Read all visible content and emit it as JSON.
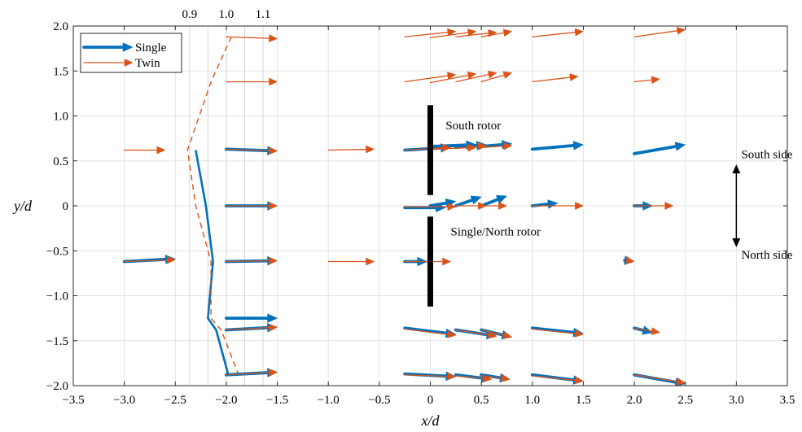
{
  "chart_data": {
    "type": "quiver",
    "xlabel": "x/d",
    "ylabel": "y/d",
    "xlim": [
      -3.5,
      3.5
    ],
    "ylim": [
      -2.0,
      2.0
    ],
    "x_ticks": [
      -3.5,
      -3.0,
      -2.5,
      -2.0,
      -1.5,
      -1.0,
      -0.5,
      0,
      0.5,
      1.0,
      1.5,
      2.0,
      2.5,
      3.0,
      3.5
    ],
    "x_tick_labels": [
      "−3.5",
      "−3.0",
      "−2.5",
      "−2.0",
      "−1.5",
      "−1.0",
      "−0.5",
      "0",
      "0.5",
      "1.0",
      "1.5",
      "2.0",
      "2.5",
      "3.0",
      "3.5"
    ],
    "y_ticks": [
      -2.0,
      -1.5,
      -1.0,
      -0.5,
      0,
      0.5,
      1.0,
      1.5,
      2.0
    ],
    "y_tick_labels": [
      "−2.0",
      "−1.5",
      "−1.0",
      "−0.5",
      "0",
      "0.5",
      "1.0",
      "1.5",
      "2.0"
    ],
    "grid": true,
    "legend_position": "top-left",
    "colors": {
      "single": "#0072BD",
      "twin": "#D95319"
    },
    "top_axis": {
      "ticks": [
        -2.36,
        -2.18,
        -2.0,
        -1.82,
        -1.64
      ],
      "labels": [
        {
          "x": -2.36,
          "text": "0.9"
        },
        {
          "x": -2.0,
          "text": "1.0"
        },
        {
          "x": -1.64,
          "text": "1.1"
        }
      ]
    },
    "series": [
      {
        "name": "Single",
        "vectors": [
          {
            "x": -3.0,
            "y": -0.62,
            "u": 0.5,
            "v": 0.03
          },
          {
            "x": -2.0,
            "y": 0.63,
            "u": 0.5,
            "v": -0.02
          },
          {
            "x": -2.0,
            "y": 0.0,
            "u": 0.5,
            "v": 0.0
          },
          {
            "x": -2.0,
            "y": -0.62,
            "u": 0.5,
            "v": 0.01
          },
          {
            "x": -2.0,
            "y": -1.25,
            "u": 0.5,
            "v": 0.0
          },
          {
            "x": -2.0,
            "y": -1.38,
            "u": 0.5,
            "v": 0.03
          },
          {
            "x": -2.0,
            "y": -1.88,
            "u": 0.5,
            "v": 0.03
          },
          {
            "x": -0.25,
            "y": -0.62,
            "u": 0.22,
            "v": 0.0
          },
          {
            "x": -0.25,
            "y": 0.62,
            "u": 0.45,
            "v": 0.03
          },
          {
            "x": 0.0,
            "y": 0.66,
            "u": 0.45,
            "v": 0.02
          },
          {
            "x": 0.25,
            "y": 0.65,
            "u": 0.3,
            "v": 0.03
          },
          {
            "x": 0.5,
            "y": 0.66,
            "u": 0.3,
            "v": 0.03
          },
          {
            "x": 1.0,
            "y": 0.63,
            "u": 0.5,
            "v": 0.05
          },
          {
            "x": 2.0,
            "y": 0.58,
            "u": 0.5,
            "v": 0.1
          },
          {
            "x": -0.25,
            "y": -0.02,
            "u": 0.4,
            "v": 0.0
          },
          {
            "x": 0.0,
            "y": 0.0,
            "u": 0.25,
            "v": 0.05
          },
          {
            "x": 0.25,
            "y": 0.0,
            "u": 0.25,
            "v": 0.1
          },
          {
            "x": 0.5,
            "y": 0.0,
            "u": 0.25,
            "v": 0.11
          },
          {
            "x": 1.0,
            "y": 0.0,
            "u": 0.25,
            "v": 0.03
          },
          {
            "x": 2.0,
            "y": 0.0,
            "u": 0.18,
            "v": 0.0
          },
          {
            "x": 1.93,
            "y": -0.61,
            "u": 0.07,
            "v": -0.01
          },
          {
            "x": -0.25,
            "y": -1.36,
            "u": 0.5,
            "v": -0.07
          },
          {
            "x": 0.25,
            "y": -1.38,
            "u": 0.4,
            "v": -0.07
          },
          {
            "x": 0.5,
            "y": -1.38,
            "u": 0.3,
            "v": -0.08
          },
          {
            "x": 1.0,
            "y": -1.36,
            "u": 0.5,
            "v": -0.06
          },
          {
            "x": 2.0,
            "y": -1.36,
            "u": 0.18,
            "v": -0.05
          },
          {
            "x": -0.25,
            "y": -1.87,
            "u": 0.5,
            "v": -0.03
          },
          {
            "x": 0.25,
            "y": -1.88,
            "u": 0.35,
            "v": -0.05
          },
          {
            "x": 0.5,
            "y": -1.88,
            "u": 0.28,
            "v": -0.05
          },
          {
            "x": 1.0,
            "y": -1.88,
            "u": 0.5,
            "v": -0.07
          },
          {
            "x": 2.0,
            "y": -1.88,
            "u": 0.5,
            "v": -0.1
          }
        ],
        "profile": [
          {
            "x": -2.3,
            "y": 0.62
          },
          {
            "x": -2.2,
            "y": 0.0
          },
          {
            "x": -2.13,
            "y": -0.62
          },
          {
            "x": -2.18,
            "y": -1.25
          },
          {
            "x": -2.1,
            "y": -1.38
          },
          {
            "x": -1.98,
            "y": -1.88
          }
        ]
      },
      {
        "name": "Twin",
        "vectors": [
          {
            "x": -3.0,
            "y": 0.62,
            "u": 0.4,
            "v": 0.0
          },
          {
            "x": -3.0,
            "y": -0.62,
            "u": 0.5,
            "v": 0.02
          },
          {
            "x": -2.0,
            "y": 1.88,
            "u": 0.5,
            "v": -0.02
          },
          {
            "x": -2.0,
            "y": 1.38,
            "u": 0.5,
            "v": 0.0
          },
          {
            "x": -2.0,
            "y": 0.63,
            "u": 0.5,
            "v": -0.02
          },
          {
            "x": -2.0,
            "y": 0.0,
            "u": 0.5,
            "v": 0.0
          },
          {
            "x": -2.0,
            "y": -0.62,
            "u": 0.5,
            "v": 0.01
          },
          {
            "x": -2.0,
            "y": -1.38,
            "u": 0.5,
            "v": 0.03
          },
          {
            "x": -2.0,
            "y": -1.88,
            "u": 0.5,
            "v": 0.03
          },
          {
            "x": -1.0,
            "y": 0.62,
            "u": 0.45,
            "v": 0.01
          },
          {
            "x": -1.0,
            "y": -0.62,
            "u": 0.45,
            "v": 0.0
          },
          {
            "x": -0.25,
            "y": 0.62,
            "u": 0.45,
            "v": 0.03
          },
          {
            "x": -0.25,
            "y": -0.62,
            "u": 0.45,
            "v": 0.0
          },
          {
            "x": -0.25,
            "y": 1.88,
            "u": 0.5,
            "v": 0.06
          },
          {
            "x": 0.0,
            "y": 1.87,
            "u": 0.45,
            "v": 0.07
          },
          {
            "x": 0.25,
            "y": 1.88,
            "u": 0.4,
            "v": 0.05
          },
          {
            "x": 0.5,
            "y": 1.88,
            "u": 0.3,
            "v": 0.06
          },
          {
            "x": 1.0,
            "y": 1.88,
            "u": 0.5,
            "v": 0.06
          },
          {
            "x": 2.0,
            "y": 1.88,
            "u": 0.5,
            "v": 0.08
          },
          {
            "x": -0.25,
            "y": 1.38,
            "u": 0.5,
            "v": 0.08
          },
          {
            "x": 0.0,
            "y": 1.37,
            "u": 0.45,
            "v": 0.1
          },
          {
            "x": 0.25,
            "y": 1.38,
            "u": 0.4,
            "v": 0.1
          },
          {
            "x": 0.5,
            "y": 1.38,
            "u": 0.3,
            "v": 0.1
          },
          {
            "x": 1.0,
            "y": 1.38,
            "u": 0.45,
            "v": 0.06
          },
          {
            "x": 2.0,
            "y": 1.38,
            "u": 0.25,
            "v": 0.03
          },
          {
            "x": 0.0,
            "y": 0.63,
            "u": 0.45,
            "v": 0.02
          },
          {
            "x": 0.25,
            "y": 0.64,
            "u": 0.3,
            "v": 0.03
          },
          {
            "x": 0.5,
            "y": 0.65,
            "u": 0.3,
            "v": 0.02
          },
          {
            "x": -0.25,
            "y": -0.01,
            "u": 0.5,
            "v": 0.0
          },
          {
            "x": 0.25,
            "y": 0.0,
            "u": 0.3,
            "v": 0.0
          },
          {
            "x": 0.5,
            "y": 0.0,
            "u": 0.25,
            "v": 0.0
          },
          {
            "x": 1.0,
            "y": 0.0,
            "u": 0.5,
            "v": 0.0
          },
          {
            "x": 2.0,
            "y": 0.0,
            "u": 0.38,
            "v": 0.0
          },
          {
            "x": 1.95,
            "y": -0.61,
            "u": 0.05,
            "v": -0.01
          },
          {
            "x": -0.25,
            "y": -1.37,
            "u": 0.5,
            "v": -0.07
          },
          {
            "x": 0.25,
            "y": -1.38,
            "u": 0.4,
            "v": -0.07
          },
          {
            "x": 0.5,
            "y": -1.38,
            "u": 0.3,
            "v": -0.08
          },
          {
            "x": 1.0,
            "y": -1.37,
            "u": 0.5,
            "v": -0.06
          },
          {
            "x": 2.0,
            "y": -1.36,
            "u": 0.25,
            "v": -0.05
          },
          {
            "x": -0.25,
            "y": -1.88,
            "u": 0.5,
            "v": -0.02
          },
          {
            "x": 0.25,
            "y": -1.89,
            "u": 0.35,
            "v": -0.04
          },
          {
            "x": 0.5,
            "y": -1.89,
            "u": 0.28,
            "v": -0.04
          },
          {
            "x": 1.0,
            "y": -1.89,
            "u": 0.5,
            "v": -0.06
          },
          {
            "x": 2.0,
            "y": -1.88,
            "u": 0.5,
            "v": -0.09
          }
        ],
        "profile": [
          {
            "x": -1.95,
            "y": 1.88
          },
          {
            "x": -2.15,
            "y": 1.38
          },
          {
            "x": -2.38,
            "y": 0.62
          },
          {
            "x": -2.3,
            "y": 0.0
          },
          {
            "x": -2.15,
            "y": -0.62
          },
          {
            "x": -2.15,
            "y": -1.25
          },
          {
            "x": -2.05,
            "y": -1.38
          },
          {
            "x": -1.88,
            "y": -1.88
          }
        ]
      }
    ],
    "rotors": [
      {
        "x": 0.0,
        "y1": 0.12,
        "y2": 1.12
      },
      {
        "x": 0.0,
        "y1": -1.12,
        "y2": -0.12
      }
    ],
    "annotations": [
      {
        "text": "South rotor",
        "x": 0.15,
        "y": 0.85
      },
      {
        "text": "Single/North rotor",
        "x": 0.2,
        "y": -0.33
      },
      {
        "text": "South side",
        "x": 3.3,
        "y": 0.53
      },
      {
        "text": "North side",
        "x": 3.3,
        "y": -0.59
      }
    ],
    "double_arrow": {
      "x": 3.0,
      "y1": 0.46,
      "y2": -0.46
    }
  }
}
